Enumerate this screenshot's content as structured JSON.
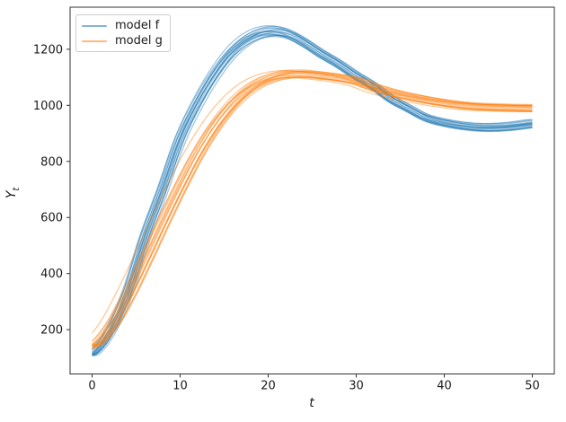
{
  "chart_data": {
    "type": "line",
    "title": "",
    "xlabel": "t",
    "ylabel": {
      "base": "Y",
      "sub": "t"
    },
    "xlim": [
      -2.5,
      52.5
    ],
    "ylim": [
      42,
      1350
    ],
    "xticks": [
      0,
      10,
      20,
      30,
      40,
      50
    ],
    "yticks": [
      200,
      400,
      600,
      800,
      1000,
      1200
    ],
    "grid": false,
    "background": "#ffffff",
    "spine_color": "#333333",
    "line_alpha": 0.45,
    "line_width": 1.2,
    "legend": {
      "position": "upper-left",
      "entries": [
        {
          "label": "model f",
          "color": "#1f77b4"
        },
        {
          "label": "model g",
          "color": "#ff7f0e"
        }
      ]
    },
    "t": [
      0,
      2,
      4,
      6,
      8,
      10,
      12,
      14,
      16,
      18,
      20,
      22,
      24,
      26,
      28,
      30,
      32,
      34,
      36,
      38,
      40,
      42,
      44,
      46,
      48,
      50
    ],
    "series": [
      {
        "name": "model f",
        "color": "#1f77b4",
        "center": [
          112,
          190,
          330,
          530,
          700,
          880,
          1010,
          1115,
          1195,
          1243,
          1263,
          1257,
          1226,
          1185,
          1148,
          1106,
          1068,
          1022,
          988,
          955,
          938,
          927,
          921,
          921,
          926,
          934
        ],
        "members": [
          {
            "amp": 1.0,
            "dy": 0,
            "dt": 0
          },
          {
            "amp": 0.992,
            "dy": -4,
            "dt": 0.3
          },
          {
            "amp": 1.008,
            "dy": 3,
            "dt": -0.2
          },
          {
            "amp": 0.988,
            "dy": 6,
            "dt": -0.5
          },
          {
            "amp": 1.013,
            "dy": -5,
            "dt": 0.15
          },
          {
            "amp": 0.996,
            "dy": 2,
            "dt": 0.45
          },
          {
            "amp": 1.004,
            "dy": -6,
            "dt": -0.35
          },
          {
            "amp": 0.99,
            "dy": -2,
            "dt": 0.6
          },
          {
            "amp": 1.01,
            "dy": 5,
            "dt": 0.05
          },
          {
            "amp": 0.994,
            "dy": 7,
            "dt": -0.6
          },
          {
            "amp": 1.006,
            "dy": -3,
            "dt": 0.25
          },
          {
            "amp": 0.998,
            "dy": -7,
            "dt": -0.15
          },
          {
            "amp": 1.015,
            "dy": 1,
            "dt": -0.45
          },
          {
            "amp": 0.986,
            "dy": -1,
            "dt": 0.1
          },
          {
            "amp": 1.002,
            "dy": 4,
            "dt": 0.55
          },
          {
            "amp": 0.9935,
            "dy": -5,
            "dt": -0.25
          }
        ]
      },
      {
        "name": "model g",
        "color": "#ff7f0e",
        "center": [
          140,
          205,
          315,
          445,
          580,
          710,
          830,
          930,
          1008,
          1063,
          1095,
          1110,
          1112,
          1106,
          1098,
          1085,
          1062,
          1044,
          1030,
          1018,
          1008,
          1000,
          995,
          993,
          991,
          990
        ],
        "members": [
          {
            "amp": 1.0,
            "dy": 0,
            "dt": 0
          },
          {
            "amp": 0.991,
            "dy": 4,
            "dt": 0.4
          },
          {
            "amp": 1.007,
            "dy": -3,
            "dt": -0.3
          },
          {
            "amp": 0.987,
            "dy": 2,
            "dt": 0.7
          },
          {
            "amp": 1.01,
            "dy": 3,
            "dt": -0.1
          },
          {
            "amp": 0.995,
            "dy": -5,
            "dt": 0.2
          },
          {
            "amp": 1.003,
            "dy": 6,
            "dt": -0.55
          },
          {
            "amp": 0.989,
            "dy": -2,
            "dt": -0.9
          },
          {
            "amp": 1.012,
            "dy": -4,
            "dt": 0.1
          },
          {
            "amp": 0.997,
            "dy": 7,
            "dt": 0.5
          },
          {
            "amp": 1.005,
            "dy": 6,
            "dt": -1.4
          },
          {
            "amp": 0.993,
            "dy": -6,
            "dt": 0.3
          },
          {
            "amp": 1.008,
            "dy": 1,
            "dt": 0.85
          },
          {
            "amp": 0.9855,
            "dy": 5,
            "dt": -0.2
          },
          {
            "amp": 1.001,
            "dy": -7,
            "dt": -0.65
          },
          {
            "amp": 0.999,
            "dy": 8,
            "dt": 1.0
          }
        ]
      }
    ]
  }
}
